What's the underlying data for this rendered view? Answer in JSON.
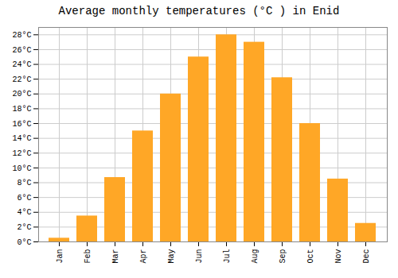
{
  "chart_data": {
    "type": "bar",
    "title": "Average monthly temperatures (°C ) in Enid",
    "categories": [
      "Jan",
      "Feb",
      "Mar",
      "Apr",
      "May",
      "Jun",
      "Jul",
      "Aug",
      "Sep",
      "Oct",
      "Nov",
      "Dec"
    ],
    "values": [
      0.5,
      3.5,
      8.7,
      15.0,
      20.0,
      25.0,
      28.0,
      27.0,
      22.2,
      16.0,
      8.5,
      2.5
    ],
    "color": "#FFA726",
    "ylim": [
      0,
      29
    ],
    "yticks": [
      {
        "value": 0,
        "label": "0°C"
      },
      {
        "value": 2,
        "label": "2°C"
      },
      {
        "value": 4,
        "label": "4°C"
      },
      {
        "value": 6,
        "label": "6°C"
      },
      {
        "value": 8,
        "label": "8°C"
      },
      {
        "value": 10,
        "label": "10°C"
      },
      {
        "value": 12,
        "label": "12°C"
      },
      {
        "value": 14,
        "label": "14°C"
      },
      {
        "value": 16,
        "label": "16°C"
      },
      {
        "value": 18,
        "label": "18°C"
      },
      {
        "value": 20,
        "label": "20°C"
      },
      {
        "value": 22,
        "label": "22°C"
      },
      {
        "value": 24,
        "label": "24°C"
      },
      {
        "value": 26,
        "label": "26°C"
      },
      {
        "value": 28,
        "label": "28°C"
      }
    ],
    "grid": true
  }
}
